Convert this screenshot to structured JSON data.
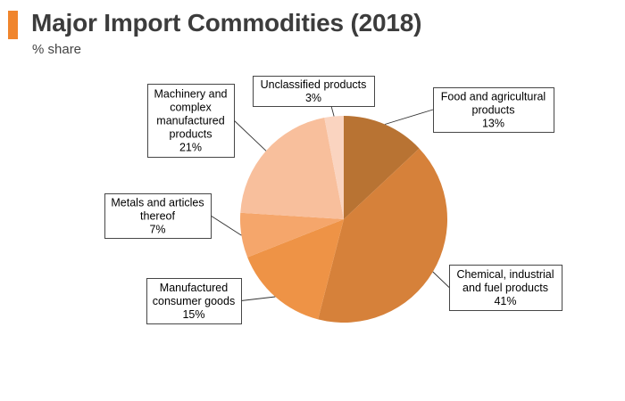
{
  "header": {
    "title": "Major Import Commodities (2018)",
    "subtitle": "% share",
    "accent_color": "#f0852d"
  },
  "chart_data": {
    "type": "pie",
    "title": "Major Import Commodities (2018)",
    "subtitle": "% share",
    "slices": [
      {
        "name": "Food and agricultural products",
        "label_lines": [
          "Food and agricultural",
          "products"
        ],
        "value": 13,
        "value_label": "13%",
        "color": "#b87333"
      },
      {
        "name": "Chemical, industrial and fuel products",
        "label_lines": [
          "Chemical, industrial",
          "and fuel products"
        ],
        "value": 41,
        "value_label": "41%",
        "color": "#d6813a"
      },
      {
        "name": "Manufactured consumer goods",
        "label_lines": [
          "Manufactured",
          "consumer goods"
        ],
        "value": 15,
        "value_label": "15%",
        "color": "#ee9346"
      },
      {
        "name": "Metals and articles thereof",
        "label_lines": [
          "Metals and articles",
          "thereof"
        ],
        "value": 7,
        "value_label": "7%",
        "color": "#f5a66b"
      },
      {
        "name": "Machinery and complex manufactured products",
        "label_lines": [
          "Machinery and",
          "complex",
          "manufactured",
          "products"
        ],
        "value": 21,
        "value_label": "21%",
        "color": "#f8bf9c"
      },
      {
        "name": "Unclassified products",
        "label_lines": [
          "Unclassified products"
        ],
        "value": 3,
        "value_label": "3%",
        "color": "#fad4c0"
      }
    ]
  }
}
